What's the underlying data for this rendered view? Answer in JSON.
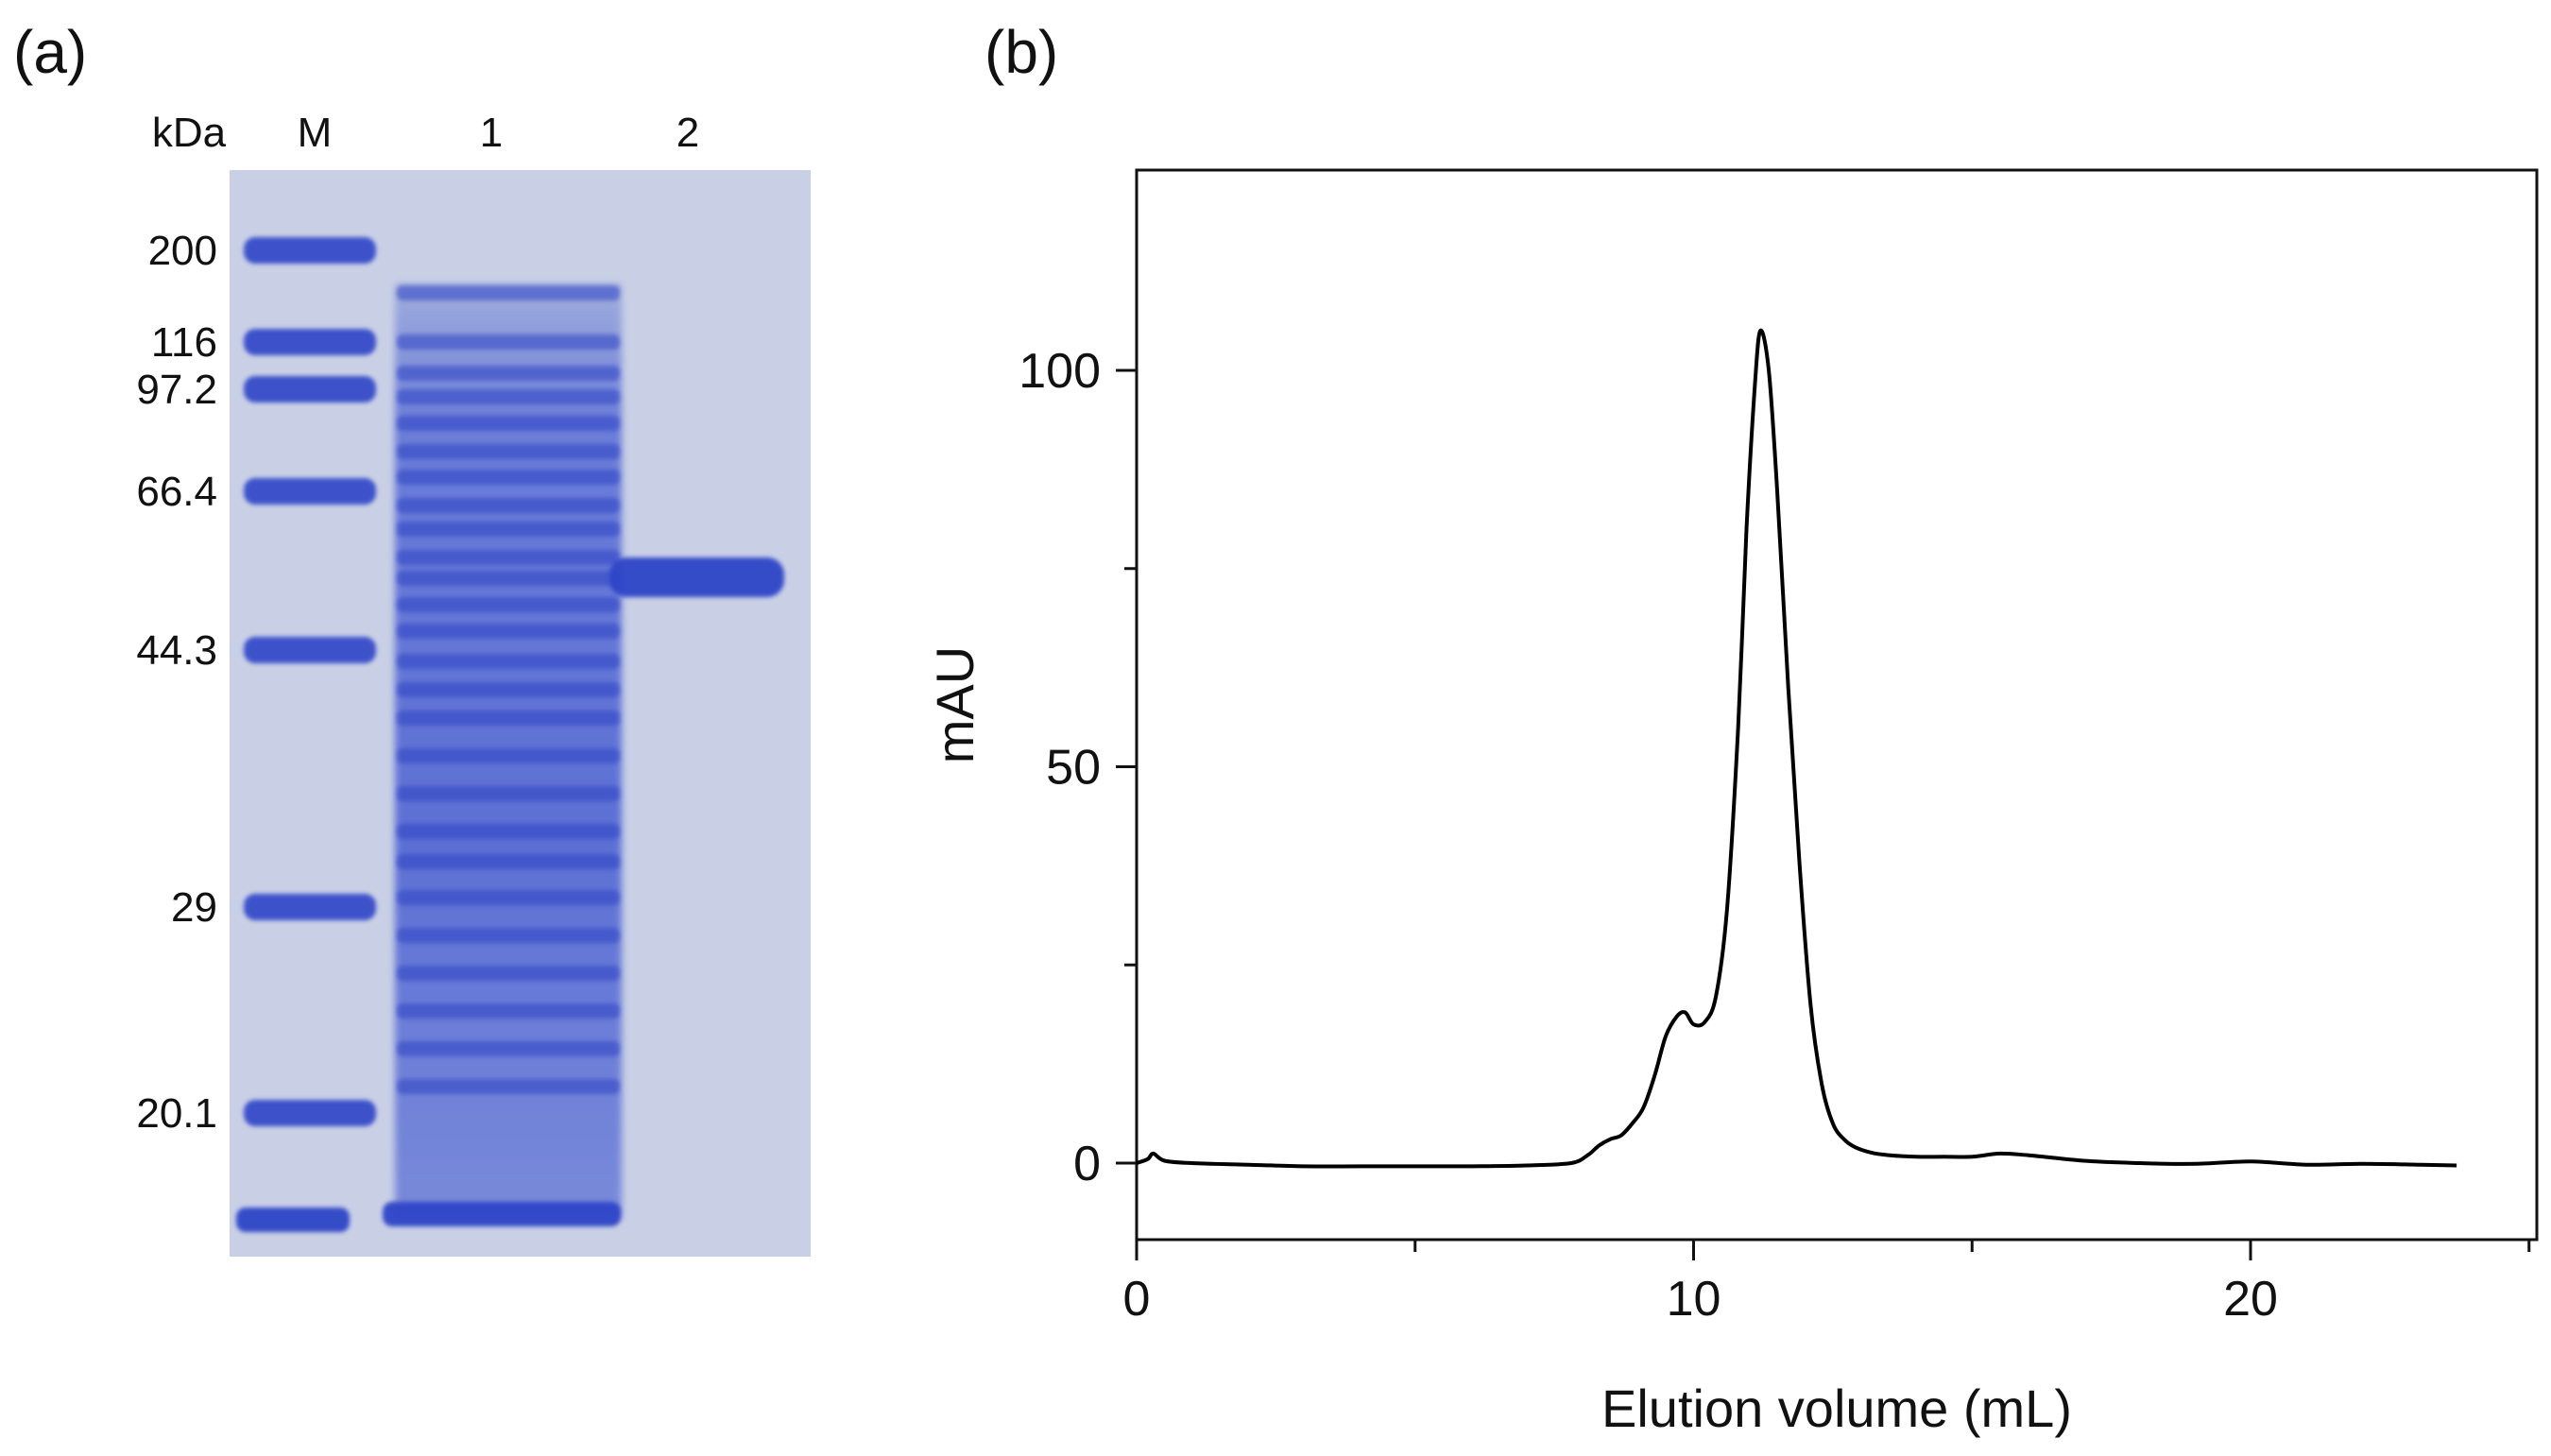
{
  "panel_a": {
    "label": "(a)",
    "unit_label": "kDa",
    "lanes": [
      "M",
      "1",
      "2"
    ],
    "markers": [
      {
        "label": "200",
        "kda": 200
      },
      {
        "label": "116",
        "kda": 116
      },
      {
        "label": "97.2",
        "kda": 97.2
      },
      {
        "label": "66.4",
        "kda": 66.4
      },
      {
        "label": "44.3",
        "kda": 44.3
      },
      {
        "label": "29",
        "kda": 29
      },
      {
        "label": "20.1",
        "kda": 20.1
      }
    ],
    "colors": {
      "gel_background": "#c9d0e6",
      "band": "#2f45c8"
    }
  },
  "panel_b": {
    "label": "(b)"
  },
  "chart_data": {
    "type": "line",
    "title": "",
    "xlabel": "Elution volume (mL)",
    "ylabel": "mAU",
    "xlim": [
      0,
      25
    ],
    "ylim": [
      -10,
      125
    ],
    "xticks": [
      0,
      10,
      20
    ],
    "yticks": [
      0,
      50,
      100
    ],
    "grid": false,
    "legend": "none",
    "series": [
      {
        "x": [
          0,
          0.2,
          0.3,
          0.5,
          1,
          2,
          3,
          4,
          5,
          6,
          7,
          7.8,
          8.1,
          8.3,
          8.5,
          8.7,
          8.9,
          9.1,
          9.3,
          9.5,
          9.7,
          9.85,
          10.0,
          10.2,
          10.4,
          10.6,
          10.8,
          10.95,
          11.1,
          11.2,
          11.35,
          11.5,
          11.7,
          11.9,
          12.1,
          12.3,
          12.5,
          12.7,
          12.9,
          13.2,
          13.5,
          14,
          14.5,
          15,
          15.5,
          16,
          17,
          18,
          19,
          20,
          21,
          22,
          23,
          23.7
        ],
        "y": [
          0,
          0.5,
          1.2,
          0.3,
          0,
          -0.2,
          -0.4,
          -0.4,
          -0.4,
          -0.4,
          -0.3,
          0,
          1,
          2.2,
          3,
          3.5,
          5,
          7,
          11,
          16,
          18.5,
          19,
          17.5,
          17.8,
          21,
          32,
          55,
          80,
          98,
          105,
          100,
          85,
          60,
          38,
          20,
          10,
          5,
          3,
          2,
          1.3,
          1,
          0.8,
          0.8,
          0.8,
          1.2,
          1,
          0.3,
          0,
          -0.1,
          0.2,
          -0.2,
          -0.1,
          -0.2,
          -0.3
        ]
      }
    ]
  }
}
